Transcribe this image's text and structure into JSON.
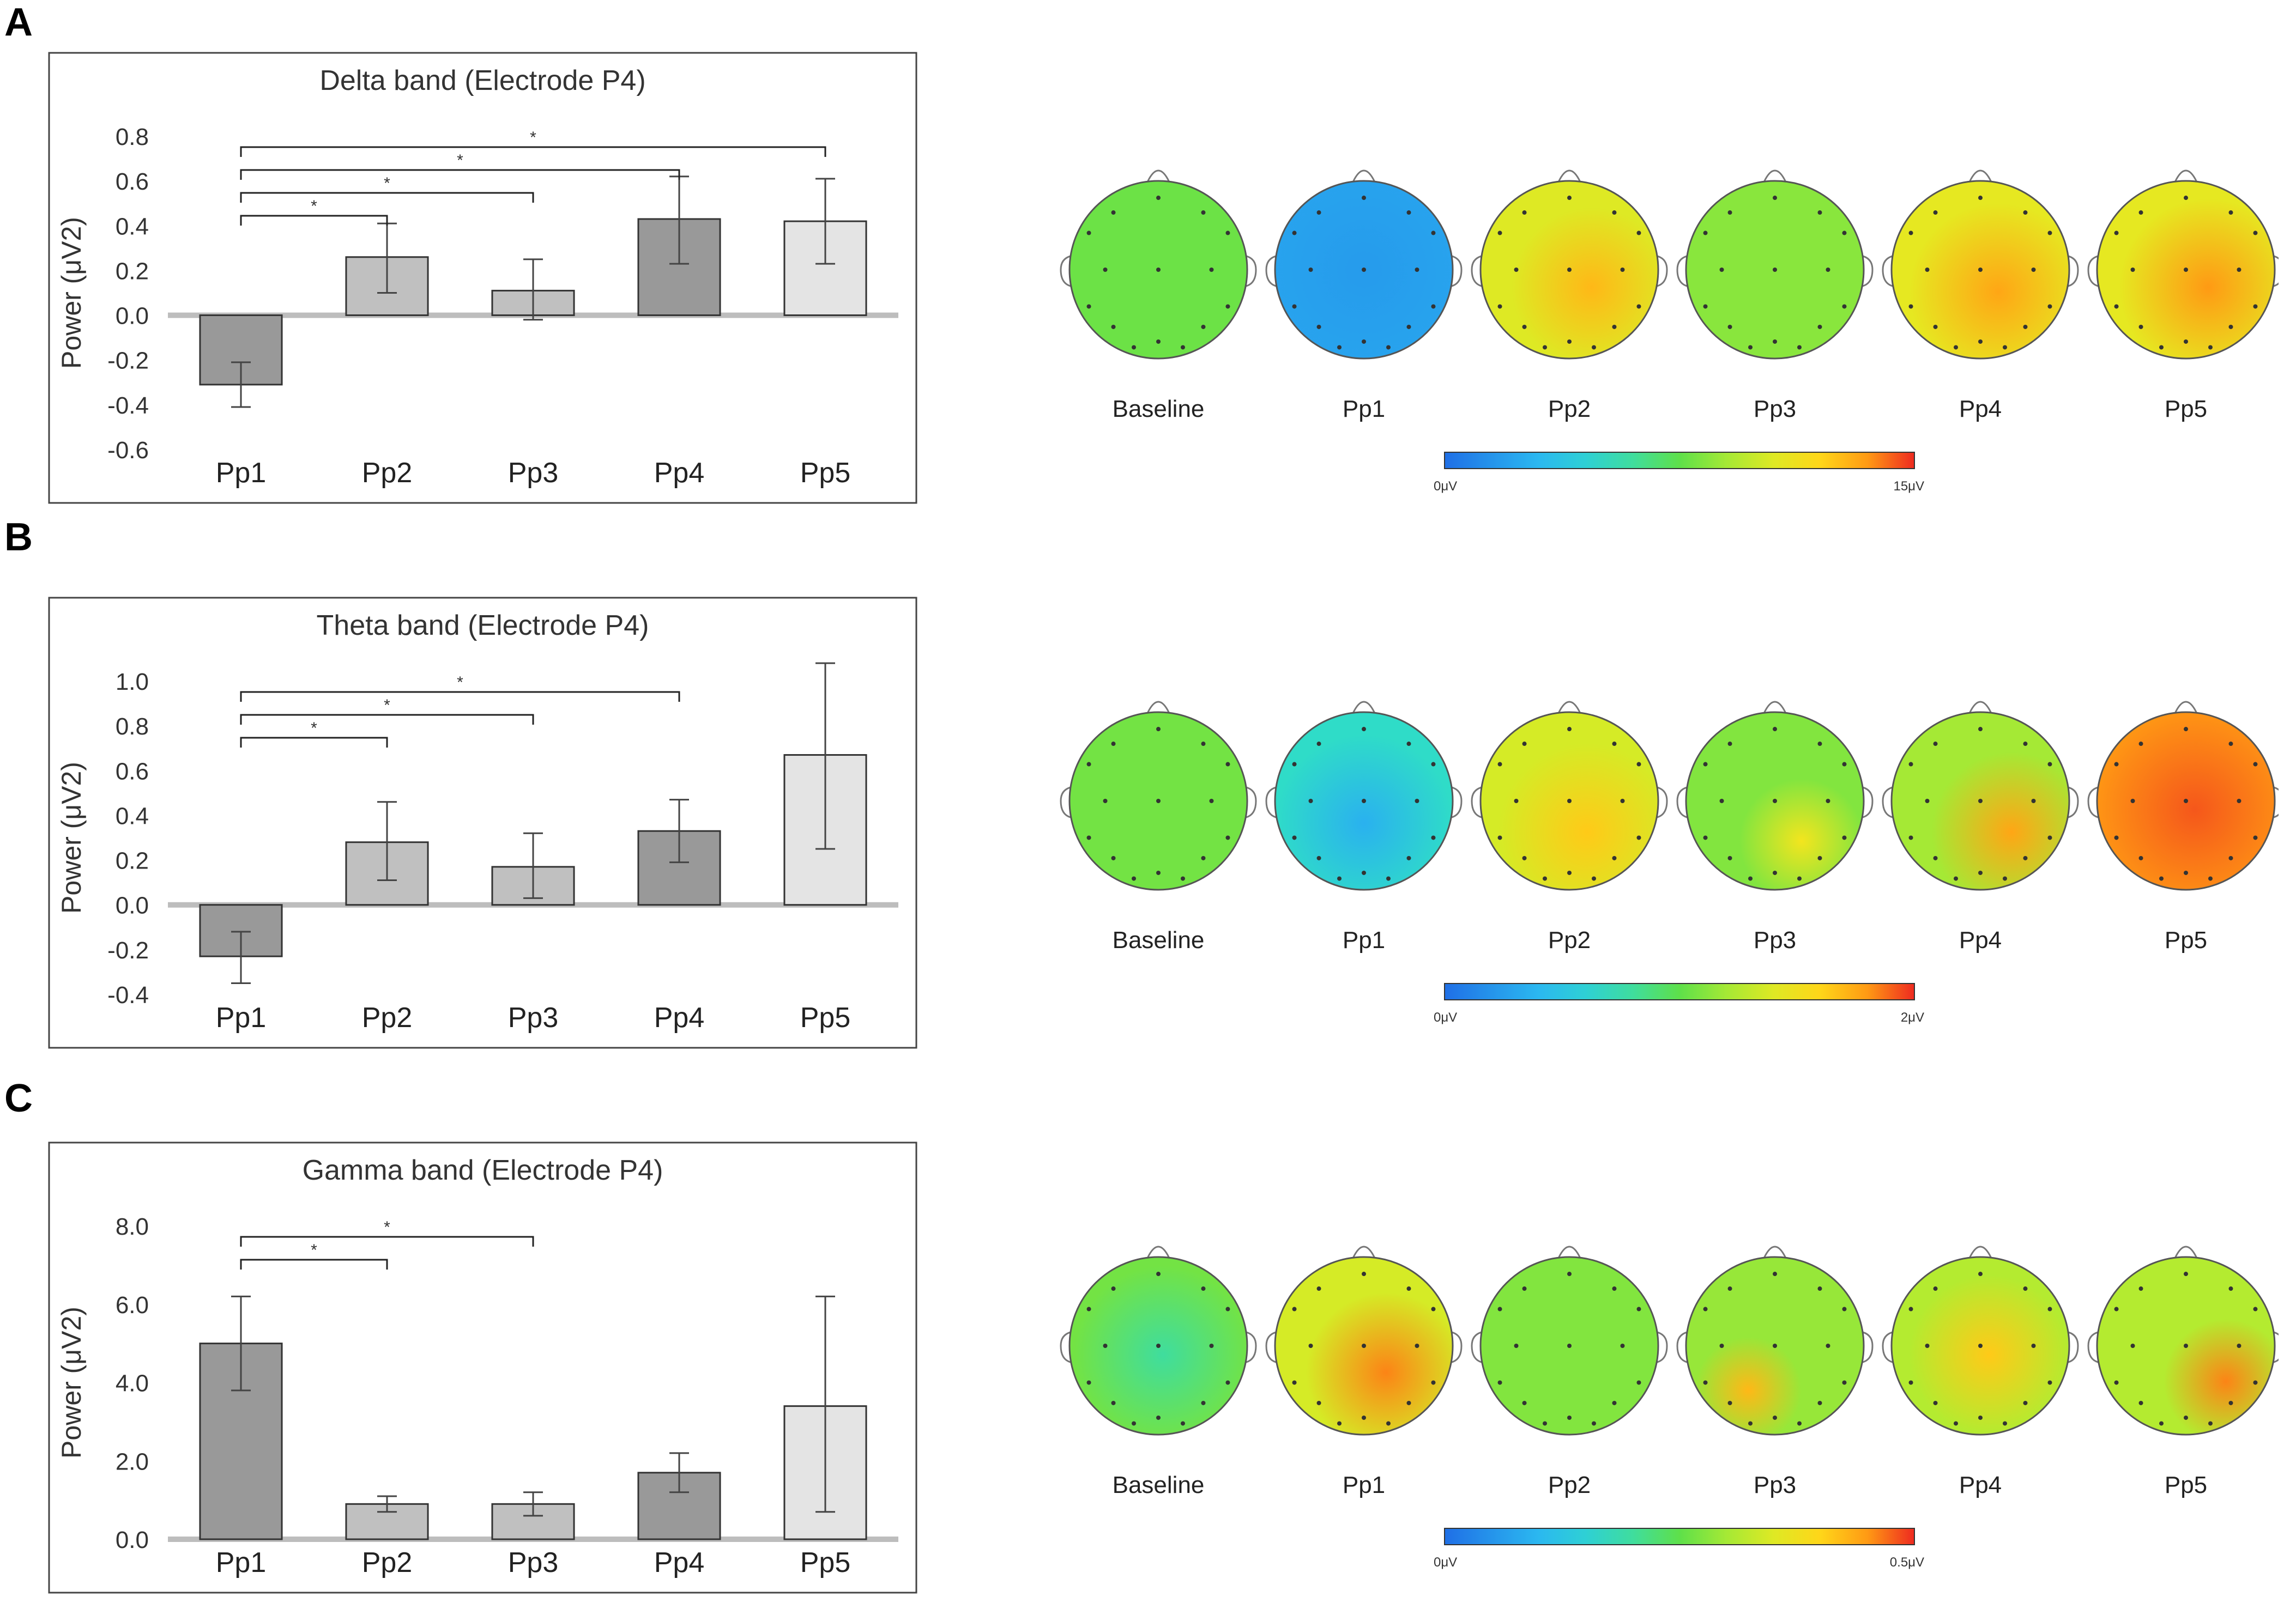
{
  "colors": {
    "bar_dark": "#999999",
    "bar_mid": "#c0c0c0",
    "bar_light": "#e4e4e4",
    "frame": "#444444",
    "zero_line": "#bdbdbd"
  },
  "panels": [
    {
      "letter": "A",
      "chart_data": {
        "type": "bar",
        "title": "Delta band (Electrode P4)",
        "ylabel": "Power (μV2)",
        "xlabel": "",
        "categories": [
          "Pp1",
          "Pp2",
          "Pp3",
          "Pp4",
          "Pp5"
        ],
        "values": [
          -0.31,
          0.26,
          0.11,
          0.43,
          0.42
        ],
        "error_low": [
          -0.41,
          0.1,
          -0.02,
          0.23,
          0.23
        ],
        "error_high": [
          -0.21,
          0.41,
          0.25,
          0.62,
          0.61
        ],
        "bar_shades": [
          "dark",
          "mid",
          "mid",
          "dark",
          "light"
        ],
        "ylim": [
          -0.6,
          0.8
        ],
        "yticks": [
          "-0.6",
          "-0.4",
          "-0.2",
          "0.0",
          "0.2",
          "0.4",
          "0.6",
          "0.8"
        ],
        "ytick_values": [
          -0.6,
          -0.4,
          -0.2,
          0.0,
          0.2,
          0.4,
          0.6,
          0.8
        ],
        "significance": [
          {
            "from": "Pp1",
            "to": "Pp2",
            "label": "*"
          },
          {
            "from": "Pp1",
            "to": "Pp3",
            "label": "*"
          },
          {
            "from": "Pp1",
            "to": "Pp4",
            "label": "*"
          },
          {
            "from": "Pp1",
            "to": "Pp5",
            "label": "*"
          }
        ]
      },
      "topomaps": {
        "labels": [
          "Baseline",
          "Pp1",
          "Pp2",
          "Pp3",
          "Pp4",
          "Pp5"
        ],
        "colorbar_min": "0μV",
        "colorbar_max": "15μV"
      }
    },
    {
      "letter": "B",
      "chart_data": {
        "type": "bar",
        "title": "Theta band (Electrode P4)",
        "ylabel": "Power (μV2)",
        "xlabel": "",
        "categories": [
          "Pp1",
          "Pp2",
          "Pp3",
          "Pp4",
          "Pp5"
        ],
        "values": [
          -0.23,
          0.28,
          0.17,
          0.33,
          0.67
        ],
        "error_low": [
          -0.35,
          0.11,
          0.03,
          0.19,
          0.25
        ],
        "error_high": [
          -0.12,
          0.46,
          0.32,
          0.47,
          1.08
        ],
        "bar_shades": [
          "dark",
          "mid",
          "mid",
          "dark",
          "light"
        ],
        "ylim": [
          -0.4,
          1.0
        ],
        "yticks": [
          "-0.4",
          "-0.2",
          "0.0",
          "0.2",
          "0.4",
          "0.6",
          "0.8",
          "1.0"
        ],
        "ytick_values": [
          -0.4,
          -0.2,
          0.0,
          0.2,
          0.4,
          0.6,
          0.8,
          1.0
        ],
        "significance": [
          {
            "from": "Pp1",
            "to": "Pp2",
            "label": "*"
          },
          {
            "from": "Pp1",
            "to": "Pp3",
            "label": "*"
          },
          {
            "from": "Pp1",
            "to": "Pp4",
            "label": "*"
          }
        ]
      },
      "topomaps": {
        "labels": [
          "Baseline",
          "Pp1",
          "Pp2",
          "Pp3",
          "Pp4",
          "Pp5"
        ],
        "colorbar_min": "0μV",
        "colorbar_max": "2μV"
      }
    },
    {
      "letter": "C",
      "chart_data": {
        "type": "bar",
        "title": "Gamma band (Electrode P4)",
        "ylabel": "Power (μV2)",
        "xlabel": "",
        "categories": [
          "Pp1",
          "Pp2",
          "Pp3",
          "Pp4",
          "Pp5"
        ],
        "values": [
          5.0,
          0.9,
          0.9,
          1.7,
          3.4
        ],
        "error_low": [
          3.8,
          0.7,
          0.6,
          1.2,
          0.7
        ],
        "error_high": [
          6.2,
          1.1,
          1.2,
          2.2,
          6.2
        ],
        "bar_shades": [
          "dark",
          "mid",
          "mid",
          "dark",
          "light"
        ],
        "ylim": [
          0.0,
          8.0
        ],
        "yticks": [
          "0.0",
          "2.0",
          "4.0",
          "6.0",
          "8.0"
        ],
        "ytick_values": [
          0.0,
          2.0,
          4.0,
          6.0,
          8.0
        ],
        "significance": [
          {
            "from": "Pp1",
            "to": "Pp2",
            "label": "*"
          },
          {
            "from": "Pp1",
            "to": "Pp3",
            "label": "*"
          }
        ]
      },
      "topomaps": {
        "labels": [
          "Baseline",
          "Pp1",
          "Pp2",
          "Pp3",
          "Pp4",
          "Pp5"
        ],
        "colorbar_min": "0μV",
        "colorbar_max": "0.5μV"
      }
    }
  ]
}
